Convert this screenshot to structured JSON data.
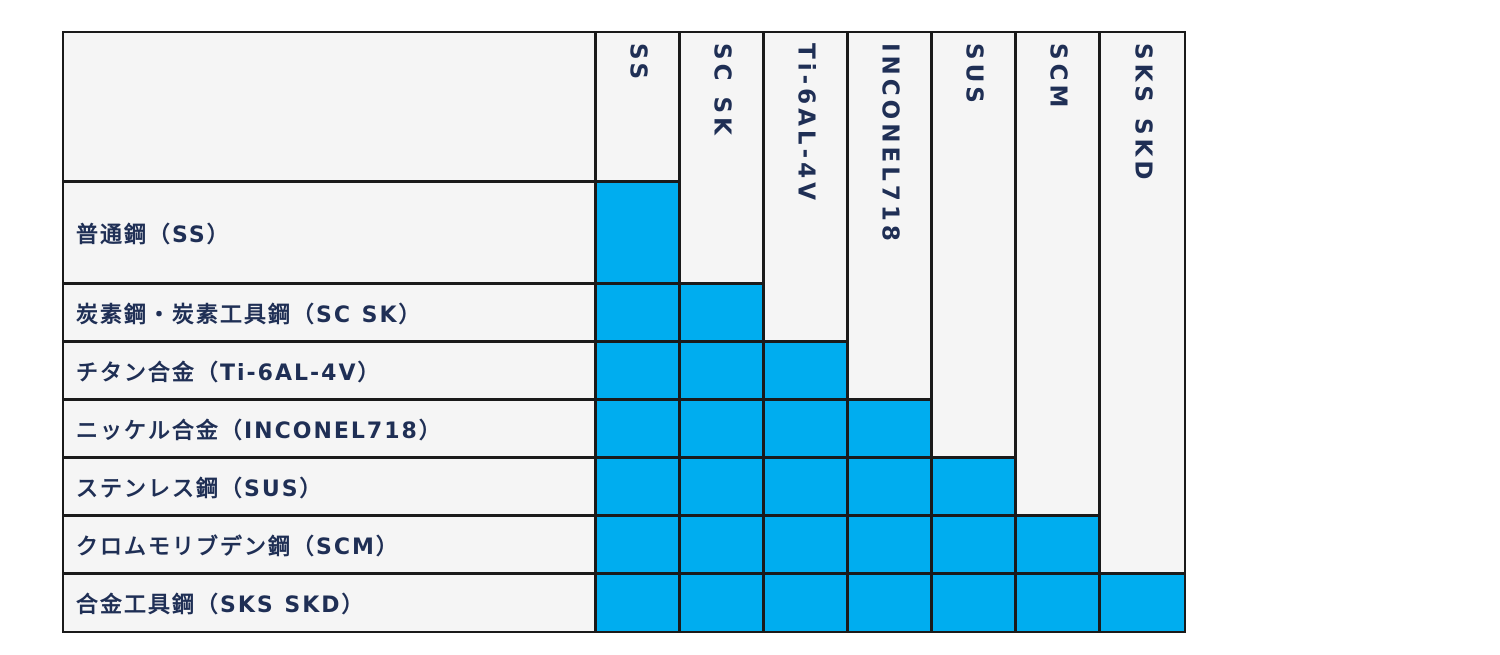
{
  "table": {
    "columns": [
      "SS",
      "SC  SK",
      "Ti-6AL-4V",
      "INCONEL718",
      "SUS",
      "SCM",
      "SKS SKD"
    ],
    "rows": [
      "普通鋼（SS）",
      "炭素鋼・炭素工具鋼（SC SK）",
      "チタン合金（Ti-6AL-4V）",
      "ニッケル合金（INCONEL718）",
      "ステンレス鋼（SUS）",
      "クロムモリブデン鋼（SCM）",
      "合金工具鋼（SKS SKD）"
    ],
    "matrix": [
      [
        1,
        0,
        0,
        0,
        0,
        0,
        0
      ],
      [
        1,
        1,
        0,
        0,
        0,
        0,
        0
      ],
      [
        1,
        1,
        1,
        0,
        0,
        0,
        0
      ],
      [
        1,
        1,
        1,
        1,
        0,
        0,
        0
      ],
      [
        1,
        1,
        1,
        1,
        1,
        0,
        0
      ],
      [
        1,
        1,
        1,
        1,
        1,
        1,
        0
      ],
      [
        1,
        1,
        1,
        1,
        1,
        1,
        1
      ]
    ]
  },
  "colors": {
    "filled": "#00adef",
    "empty": "#f5f5f5",
    "border": "#1a1a1a",
    "text": "#1f2f55"
  }
}
